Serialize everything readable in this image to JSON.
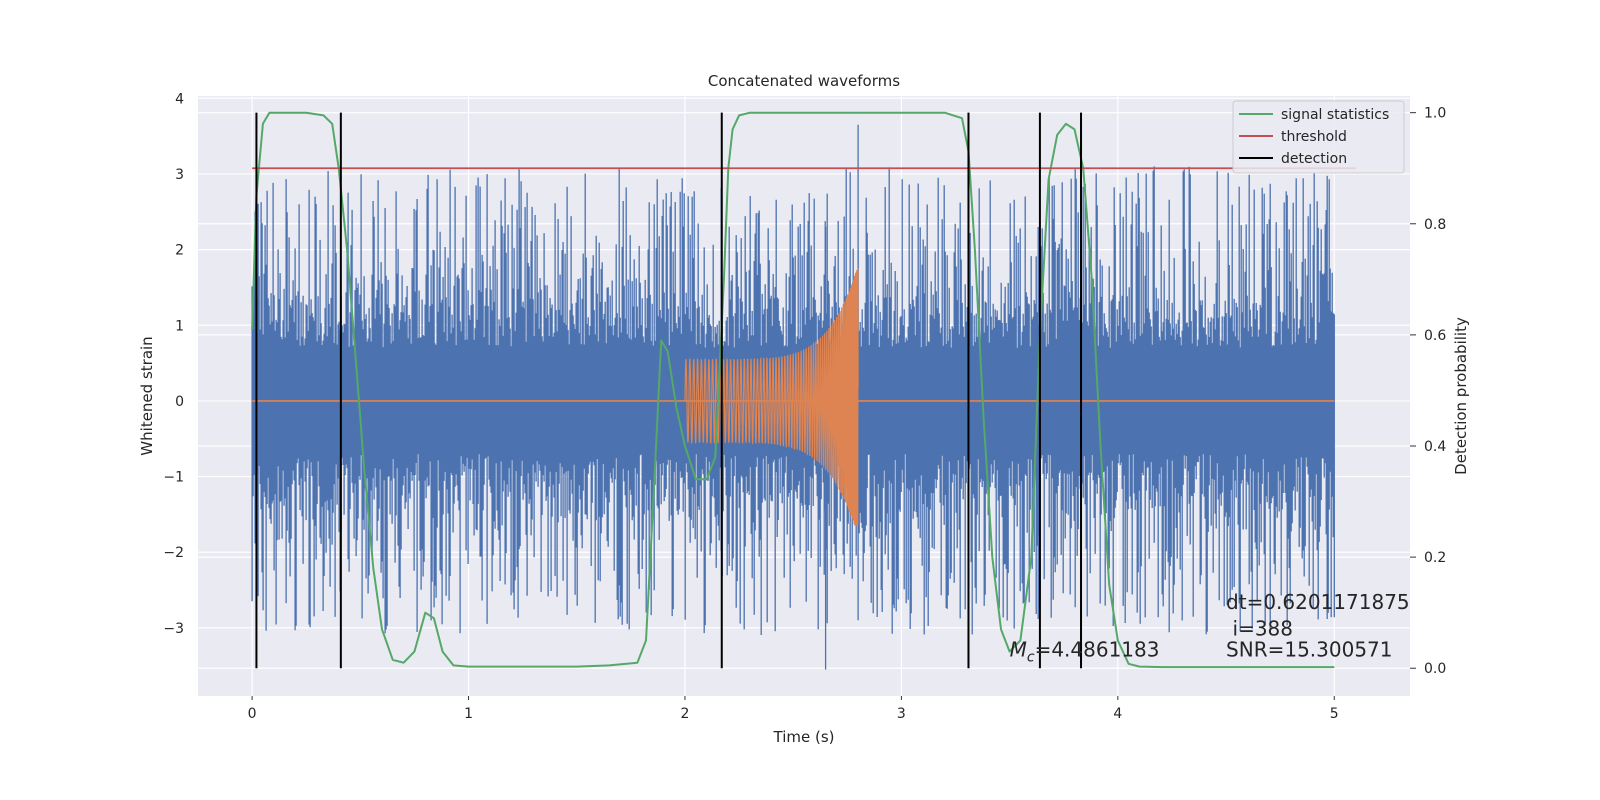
{
  "chart_data": {
    "type": "line",
    "title": "Concatenated waveforms",
    "xlabel": "Time (s)",
    "ylabel": "Whitened strain",
    "ylabel_right": "Detection probability",
    "xlim": [
      -0.25,
      5.35
    ],
    "ylim": [
      -3.9,
      4.03
    ],
    "ylim_right": [
      -0.05,
      1.03
    ],
    "grid": true,
    "legend_position": "top-right",
    "x_ticks": [
      0,
      1,
      2,
      3,
      4,
      5
    ],
    "x_tick_labels": [
      "0",
      "1",
      "2",
      "3",
      "4",
      "5"
    ],
    "y_ticks": [
      -3,
      -2,
      -1,
      0,
      1,
      2,
      3,
      4
    ],
    "y_tick_labels": [
      "−3",
      "−2",
      "−1",
      "0",
      "1",
      "2",
      "3",
      "4"
    ],
    "y_right_ticks": [
      0.0,
      0.2,
      0.4,
      0.6,
      0.8,
      1.0
    ],
    "y_right_tick_labels": [
      "0.0",
      "0.2",
      "0.4",
      "0.6",
      "0.8",
      "1.0"
    ],
    "series": [
      {
        "color": "#4c72b0",
        "axis": "left",
        "x_range": [
          0,
          5
        ],
        "envelope": {
          "core_amplitude": 0.7,
          "peak_amplitude": 3.0,
          "max_value": 3.65,
          "min_value": -3.55
        }
      },
      {
        "color": "#dd8452",
        "axis": "left",
        "chirp": {
          "t_start": 2.0,
          "t_end": 2.8,
          "amp_start": 0.55,
          "amp_end": 1.8,
          "min_value": -1.65,
          "baseline": 0
        },
        "x_range": [
          0,
          5
        ]
      },
      {
        "name": "signal statistics",
        "color": "#55a868",
        "axis": "right",
        "x": [
          0.0,
          0.02,
          0.05,
          0.08,
          0.15,
          0.25,
          0.33,
          0.37,
          0.4,
          0.44,
          0.48,
          0.52,
          0.56,
          0.6,
          0.65,
          0.7,
          0.75,
          0.8,
          0.84,
          0.88,
          0.93,
          1.0,
          1.5,
          1.65,
          1.78,
          1.82,
          1.86,
          1.89,
          1.92,
          1.96,
          2.0,
          2.05,
          2.1,
          2.14,
          2.18,
          2.2,
          2.22,
          2.25,
          2.3,
          2.5,
          3.0,
          3.2,
          3.28,
          3.31,
          3.34,
          3.38,
          3.42,
          3.46,
          3.5,
          3.55,
          3.6,
          3.64,
          3.68,
          3.72,
          3.76,
          3.8,
          3.84,
          3.88,
          3.92,
          3.96,
          4.0,
          4.05,
          4.1,
          4.2,
          5.0
        ],
        "y": [
          0.61,
          0.85,
          0.98,
          1.0,
          1.0,
          1.0,
          0.995,
          0.98,
          0.9,
          0.75,
          0.55,
          0.35,
          0.18,
          0.07,
          0.015,
          0.01,
          0.03,
          0.1,
          0.09,
          0.03,
          0.005,
          0.003,
          0.003,
          0.005,
          0.01,
          0.05,
          0.35,
          0.59,
          0.57,
          0.47,
          0.4,
          0.34,
          0.34,
          0.38,
          0.7,
          0.9,
          0.97,
          0.995,
          1.0,
          1.0,
          1.0,
          1.0,
          0.99,
          0.93,
          0.75,
          0.45,
          0.2,
          0.07,
          0.03,
          0.05,
          0.2,
          0.6,
          0.88,
          0.96,
          0.98,
          0.97,
          0.9,
          0.7,
          0.4,
          0.15,
          0.05,
          0.008,
          0.003,
          0.002,
          0.002
        ]
      },
      {
        "name": "threshold",
        "color": "#c44e52",
        "axis": "right",
        "x": [
          0.0,
          5.1
        ],
        "y": [
          0.9,
          0.9
        ]
      },
      {
        "name": "detection",
        "color": "#000000",
        "axis": "right",
        "vlines_x": [
          0.02,
          0.41,
          2.17,
          3.31,
          3.64,
          3.83
        ],
        "ymin": 0.0,
        "ymax": 1.0
      }
    ],
    "annotations": [
      {
        "text": "dt=0.6201171875",
        "x": 4.5,
        "y": -2.75
      },
      {
        "text": "i=388",
        "x": 4.53,
        "y": -3.1
      },
      {
        "text": "SNR=15.300571",
        "x": 4.5,
        "y": -3.38
      },
      {
        "text_prefix": "M",
        "text_subscript": "c",
        "text_suffix": "=4.4861183",
        "x": 3.5,
        "y": -3.38
      }
    ]
  }
}
